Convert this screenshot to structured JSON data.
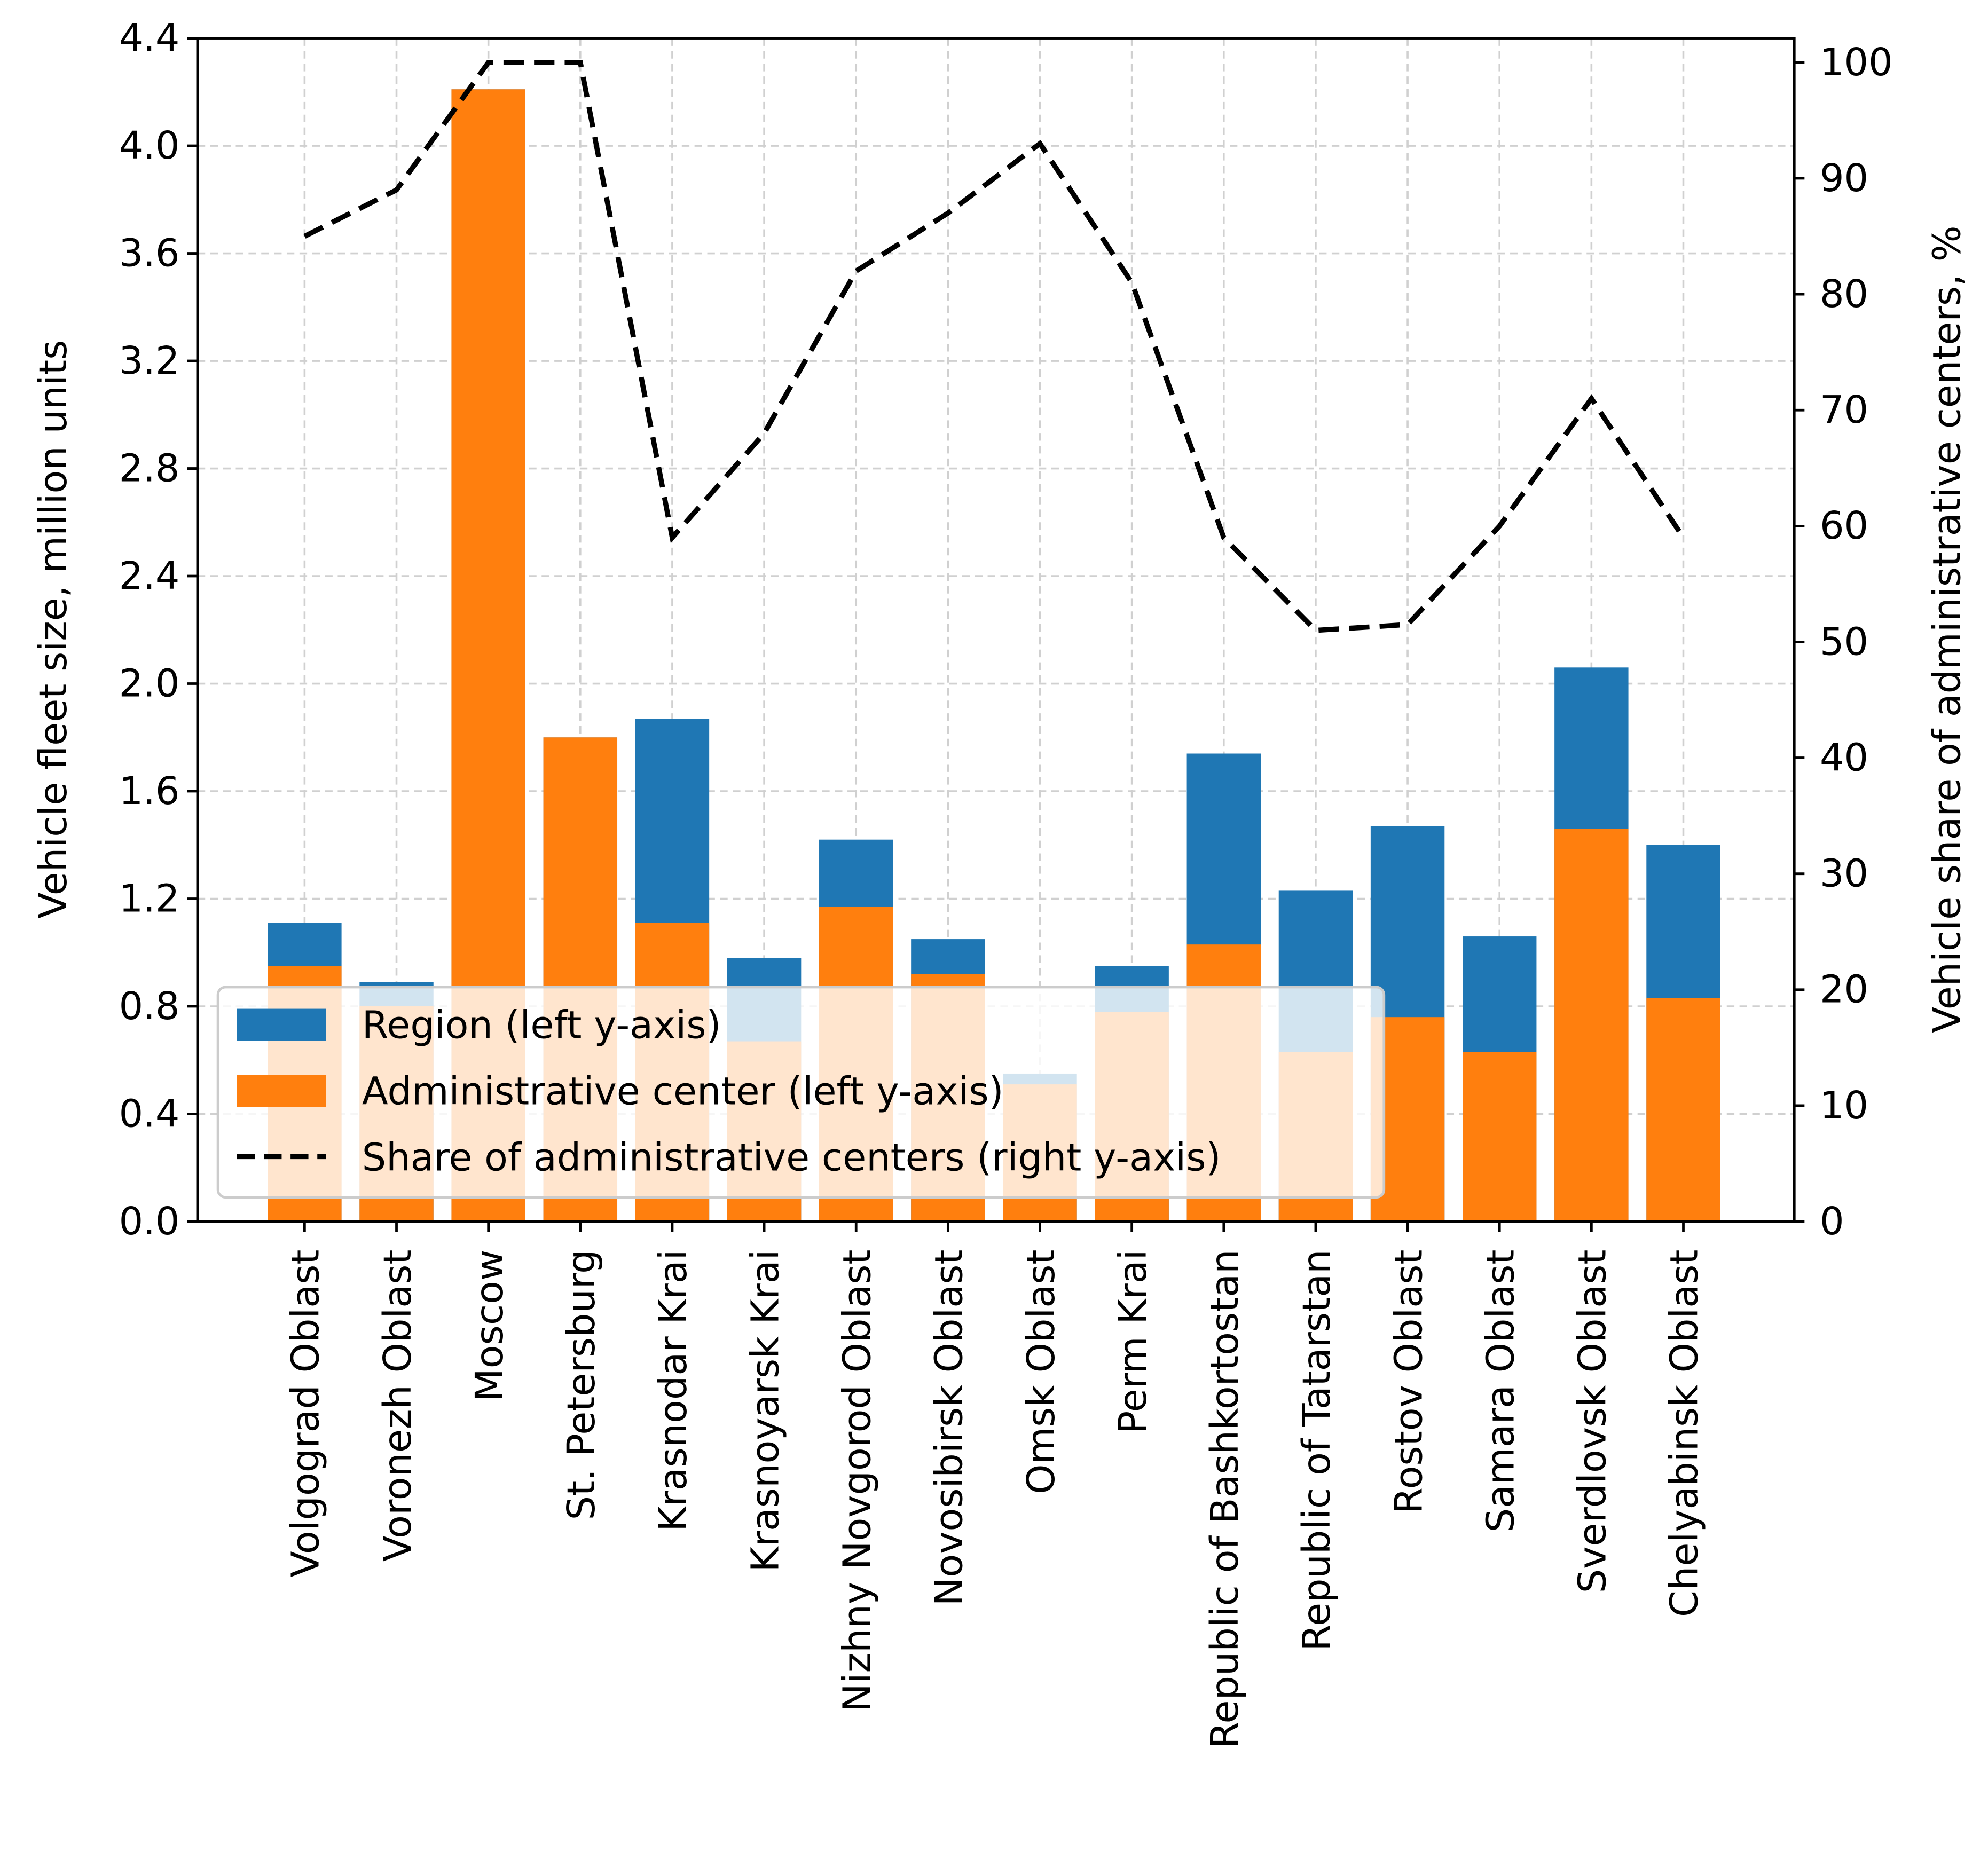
{
  "chart_data": {
    "type": "bar",
    "stacked_overlay": true,
    "categories": [
      "Volgograd Oblast",
      "Voronezh Oblast",
      "Moscow",
      "St. Petersburg",
      "Krasnodar Krai",
      "Krasnoyarsk Krai",
      "Nizhny Novgorod Oblast",
      "Novosibirsk Oblast",
      "Omsk Oblast",
      "Perm Krai",
      "Republic of Bashkortostan",
      "Republic of Tatarstan",
      "Rostov Oblast",
      "Samara Oblast",
      "Sverdlovsk Oblast",
      "Chelyabinsk Oblast"
    ],
    "series": [
      {
        "name": "Region (left y-axis)",
        "type": "bar",
        "axis": "left",
        "color": "#1f77b4",
        "values": [
          1.11,
          0.89,
          4.21,
          1.8,
          1.87,
          0.98,
          1.42,
          1.05,
          0.55,
          0.95,
          1.74,
          1.23,
          1.47,
          1.06,
          2.06,
          1.4
        ]
      },
      {
        "name": "Administrative center (left y-axis)",
        "type": "bar",
        "axis": "left",
        "color": "#ff7f0e",
        "values": [
          0.95,
          0.8,
          4.21,
          1.8,
          1.11,
          0.67,
          1.17,
          0.92,
          0.51,
          0.78,
          1.03,
          0.63,
          0.76,
          0.63,
          1.46,
          0.83
        ]
      },
      {
        "name": "Share of administrative centers (right y-axis)",
        "type": "line",
        "axis": "right",
        "color": "#000000",
        "dash": "dashed",
        "values": [
          85,
          89,
          100,
          100,
          59,
          68,
          82,
          87,
          93,
          81,
          59,
          51,
          51.5,
          60,
          71,
          59
        ]
      }
    ],
    "ylabel": "Vehicle fleet size, million units",
    "y2label": "Vehicle share of administrative centers, %",
    "ylim": [
      0,
      4.4
    ],
    "y2lim": [
      0,
      100
    ],
    "yticks": [
      "0.0",
      "0.4",
      "0.8",
      "1.2",
      "1.6",
      "2.0",
      "2.4",
      "2.8",
      "3.2",
      "3.6",
      "4.0",
      "4.4"
    ],
    "y2ticks": [
      "0",
      "10",
      "20",
      "30",
      "40",
      "50",
      "60",
      "70",
      "80",
      "90",
      "100"
    ],
    "grid": true,
    "legend_position": "lower-left"
  }
}
